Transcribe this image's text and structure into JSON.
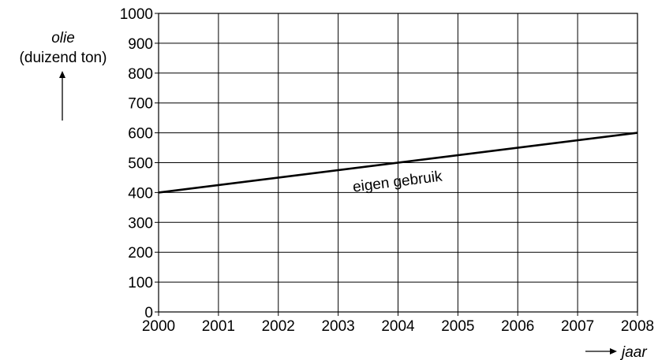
{
  "chart_data": {
    "type": "line",
    "title": "",
    "ylabel_line1": "olie",
    "ylabel_line2": "(duizend ton)",
    "xlabel": "jaar",
    "xlim": [
      2000,
      2008
    ],
    "ylim": [
      0,
      1000
    ],
    "x_ticks": [
      2000,
      2001,
      2002,
      2003,
      2004,
      2005,
      2006,
      2007,
      2008
    ],
    "y_ticks": [
      0,
      100,
      200,
      300,
      400,
      500,
      600,
      700,
      800,
      900,
      1000
    ],
    "grid": true,
    "series": [
      {
        "name": "eigen gebruik",
        "x": [
          2000,
          2008
        ],
        "values": [
          400,
          600
        ]
      }
    ]
  }
}
